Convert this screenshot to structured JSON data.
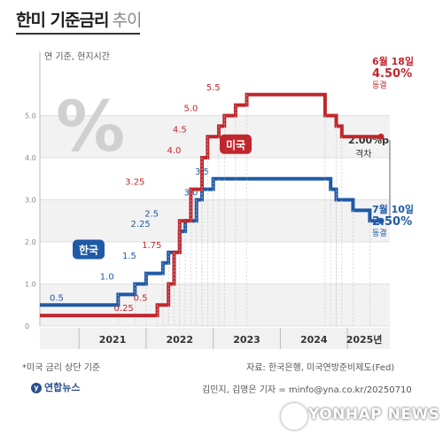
{
  "header": {
    "title_main": "한미 기준금리",
    "title_sub": "추이"
  },
  "colors": {
    "korea": "#1f5aa6",
    "us": "#c0272d",
    "grid": "#d9d9d9",
    "band": "#f2f2f2"
  },
  "chart_data": {
    "type": "line",
    "note": "연 기준, 현지시간",
    "ylim": [
      0,
      6
    ],
    "yticks": [
      "0",
      "1.0",
      "2.0",
      "3.0",
      "4.0",
      "5.0"
    ],
    "xticks": [
      "2021",
      "2022",
      "2023",
      "2024",
      "2025년"
    ],
    "big_symbol": "%",
    "series": [
      {
        "name": "한국",
        "color": "#1f5aa6",
        "points": [
          [
            "2020-06",
            0.5
          ],
          [
            "2021-08",
            0.75
          ],
          [
            "2021-11",
            1.0
          ],
          [
            "2022-01",
            1.25
          ],
          [
            "2022-04",
            1.5
          ],
          [
            "2022-05",
            1.75
          ],
          [
            "2022-07",
            2.25
          ],
          [
            "2022-08",
            2.5
          ],
          [
            "2022-10",
            3.0
          ],
          [
            "2022-11",
            3.25
          ],
          [
            "2023-01",
            3.5
          ],
          [
            "2024-10",
            3.25
          ],
          [
            "2024-11",
            3.0
          ],
          [
            "2025-02",
            2.75
          ],
          [
            "2025-05",
            2.5
          ],
          [
            "2025-07",
            2.5
          ]
        ],
        "labels": [
          {
            "text": "0.5",
            "date": "2020-09",
            "value": 0.5
          },
          {
            "text": "1.0",
            "date": "2021-06",
            "value": 1.0
          },
          {
            "text": "1.5",
            "date": "2021-10",
            "value": 1.5
          },
          {
            "text": "2.25",
            "date": "2021-12",
            "value": 2.25
          },
          {
            "text": "2.5",
            "date": "2022-02",
            "value": 2.5
          },
          {
            "text": "3.0",
            "date": "2022-09",
            "value": 3.0
          },
          {
            "text": "3.5",
            "date": "2022-11",
            "value": 3.5
          }
        ],
        "end_label": {
          "date": "7월 10일",
          "value": "2.50%",
          "status": "동결"
        }
      },
      {
        "name": "미국",
        "color": "#c0272d",
        "points": [
          [
            "2020-06",
            0.25
          ],
          [
            "2022-03",
            0.5
          ],
          [
            "2022-05",
            1.0
          ],
          [
            "2022-06",
            1.75
          ],
          [
            "2022-07",
            2.5
          ],
          [
            "2022-09",
            3.25
          ],
          [
            "2022-11",
            4.0
          ],
          [
            "2022-12",
            4.5
          ],
          [
            "2023-02",
            4.75
          ],
          [
            "2023-03",
            5.0
          ],
          [
            "2023-05",
            5.25
          ],
          [
            "2023-07",
            5.5
          ],
          [
            "2024-09",
            5.0
          ],
          [
            "2024-11",
            4.75
          ],
          [
            "2024-12",
            4.5
          ],
          [
            "2025-07",
            4.5
          ]
        ],
        "labels": [
          {
            "text": "0.25",
            "date": "2021-09",
            "value": 0.25
          },
          {
            "text": "0.5",
            "date": "2021-12",
            "value": 0.5
          },
          {
            "text": "1.75",
            "date": "2022-02",
            "value": 1.75
          },
          {
            "text": "3.25",
            "date": "2021-11",
            "value": 3.25
          },
          {
            "text": "4.0",
            "date": "2022-06",
            "value": 4.0
          },
          {
            "text": "4.5",
            "date": "2022-07",
            "value": 4.5
          },
          {
            "text": "5.0",
            "date": "2022-09",
            "value": 5.0
          },
          {
            "text": "5.5",
            "date": "2023-01",
            "value": 5.5
          }
        ],
        "end_label": {
          "date": "6월 18일",
          "value": "4.50%",
          "status": "동결"
        }
      }
    ],
    "gap_label": {
      "value": "2.00%p",
      "text": "격차"
    },
    "footnote": "*미국 금리 상단 기준"
  },
  "footer": {
    "source": "자료: 한국은행, 미국연방준비제도(Fed)",
    "credit": "김민지, 김영은 기자 = minfo@yna.co.kr/20250710",
    "logo_text": "연합뉴스",
    "watermark": "YONHAP NEWS"
  }
}
